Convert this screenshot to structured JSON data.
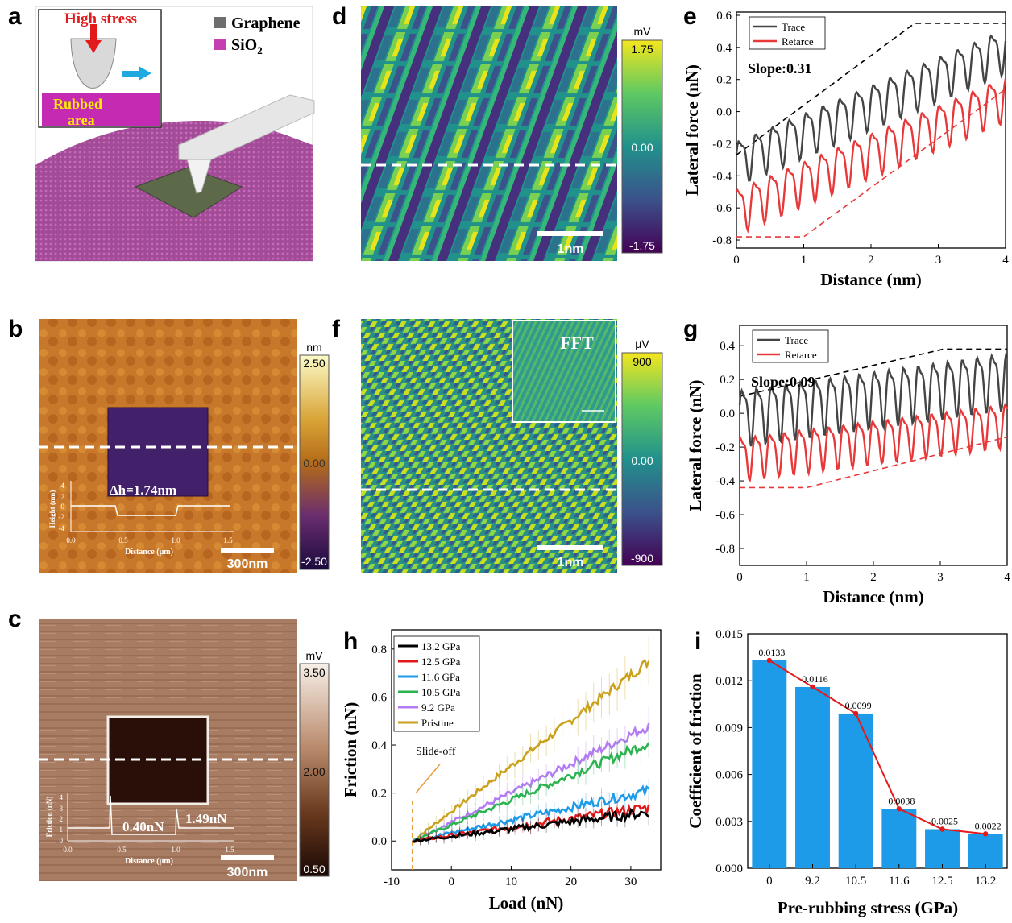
{
  "panel_labels": {
    "a": "a",
    "b": "b",
    "c": "c",
    "d": "d",
    "e": "e",
    "f": "f",
    "g": "g",
    "h": "h",
    "i": "i"
  },
  "panel_a": {
    "inset_title": "High stress",
    "inset_label_line1": "Rubbed",
    "inset_label_line2": "area",
    "legend": [
      {
        "label": "Graphene",
        "color": "#6e6e6e"
      },
      {
        "label": "SiO",
        "sub": "2",
        "color": "#c63fb0"
      }
    ]
  },
  "panel_b": {
    "colorbar_unit": "nm",
    "colorbar_ticks": [
      "2.50",
      "0.00",
      "-2.50"
    ],
    "annotation": "Δh=1.74nm",
    "scale_bar": "300nm",
    "inset": {
      "ylabel": "Height (nm)",
      "xlabel": "Distance (μm)",
      "yticks": [
        "4",
        "2",
        "0",
        "-2",
        "-4"
      ],
      "xticks": [
        "0.0",
        "0.5",
        "1.0",
        "1.5"
      ]
    }
  },
  "panel_c": {
    "colorbar_unit": "mV",
    "colorbar_ticks": [
      "3.50",
      "2.00",
      "0.50"
    ],
    "annotation_left": "0.40nN",
    "annotation_right": "1.49nN",
    "scale_bar": "300nm",
    "inset": {
      "ylabel": "Friction (nN)",
      "xlabel": "Distance (μm)",
      "yticks": [
        "4",
        "3",
        "2",
        "1",
        "0"
      ],
      "xticks": [
        "0.0",
        "0.5",
        "1.0",
        "1.5"
      ]
    }
  },
  "panel_d": {
    "colorbar_unit": "mV",
    "colorbar_ticks": [
      "1.75",
      "0.00",
      "-1.75"
    ],
    "scale_bar": "1nm"
  },
  "panel_f": {
    "colorbar_unit": "μV",
    "colorbar_ticks": [
      "900",
      "0.00",
      "-900"
    ],
    "scale_bar": "1nm",
    "inset_label": "FFT"
  },
  "chart_data": [
    {
      "panel": "e",
      "type": "line",
      "xlabel": "Distance (nm)",
      "ylabel": "Lateral force (nN)",
      "xlim": [
        0,
        4
      ],
      "ylim": [
        -0.85,
        0.62
      ],
      "xticks": [
        "0",
        "1",
        "2",
        "3",
        "4"
      ],
      "yticks": [
        "0.6",
        "0.4",
        "0.2",
        "0.0",
        "-0.2",
        "-0.4",
        "-0.6",
        "-0.8"
      ],
      "annotation": "Slope:0.31",
      "legend": [
        "Trace",
        "Retarce"
      ],
      "series": [
        {
          "name": "Trace",
          "color": "#444444",
          "baseline_start": -0.3,
          "baseline_end": 0.4,
          "amplitude": 0.14,
          "period": 0.25
        },
        {
          "name": "Retarce",
          "color": "#e8393a",
          "baseline_start": -0.6,
          "baseline_end": 0.1,
          "amplitude": 0.14,
          "period": 0.25
        }
      ],
      "envelopes": [
        {
          "color": "#000000",
          "x": [
            0,
            2.65,
            4
          ],
          "y": [
            -0.27,
            0.55,
            0.55
          ]
        },
        {
          "color": "#e8393a",
          "x": [
            0,
            1.0,
            4
          ],
          "y": [
            -0.78,
            -0.78,
            0.14
          ]
        }
      ]
    },
    {
      "panel": "g",
      "type": "line",
      "xlabel": "Distance (nm)",
      "ylabel": "Lateral force (nN)",
      "xlim": [
        0,
        4
      ],
      "ylim": [
        -0.9,
        0.52
      ],
      "xticks": [
        "0",
        "1",
        "2",
        "3",
        "4"
      ],
      "yticks": [
        "0.4",
        "0.2",
        "0.0",
        "-0.2",
        "-0.4",
        "-0.6",
        "-0.8"
      ],
      "annotation": "Slope:0.09",
      "legend": [
        "Trace",
        "Retarce"
      ],
      "series": [
        {
          "name": "Trace",
          "color": "#444444",
          "baseline_start": 0.0,
          "baseline_end": 0.22,
          "amplitude": 0.17,
          "period": 0.22
        },
        {
          "name": "Retarce",
          "color": "#e8393a",
          "baseline_start": -0.25,
          "baseline_end": -0.05,
          "amplitude": 0.13,
          "period": 0.22
        }
      ],
      "envelopes": [
        {
          "color": "#000000",
          "x": [
            0,
            3.05,
            4
          ],
          "y": [
            0.1,
            0.38,
            0.38
          ]
        },
        {
          "color": "#e8393a",
          "x": [
            0,
            1.0,
            4
          ],
          "y": [
            -0.44,
            -0.44,
            -0.14
          ]
        }
      ]
    },
    {
      "panel": "h",
      "type": "line",
      "xlabel": "Load (nN)",
      "ylabel": "Friction (nN)",
      "xlim": [
        -10,
        35
      ],
      "ylim": [
        -0.12,
        0.88
      ],
      "xticks": [
        "-10",
        "0",
        "10",
        "20",
        "30"
      ],
      "yticks": [
        "0.8",
        "0.6",
        "0.4",
        "0.2",
        "0.0"
      ],
      "annotation": "Slide-off",
      "slide_off_x": -6.5,
      "series": [
        {
          "name": "13.2 GPa",
          "color": "#000000",
          "x_start": -6.5,
          "x_end": 33,
          "y_start": 0.0,
          "y_end": 0.12
        },
        {
          "name": "12.5 GPa",
          "color": "#e31a1c",
          "x_start": -6.5,
          "x_end": 33,
          "y_start": 0.0,
          "y_end": 0.14
        },
        {
          "name": "11.6 GPa",
          "color": "#1e9be8",
          "x_start": -6.5,
          "x_end": 33,
          "y_start": 0.0,
          "y_end": 0.21
        },
        {
          "name": "10.5 GPa",
          "color": "#2bb34f",
          "x_start": -6.5,
          "x_end": 33,
          "y_start": 0.0,
          "y_end": 0.41
        },
        {
          "name": "9.2 GPa",
          "color": "#b57bf4",
          "x_start": -6.5,
          "x_end": 33,
          "y_start": 0.0,
          "y_end": 0.48
        },
        {
          "name": "Pristine",
          "color": "#c9a11a",
          "x_start": -6.5,
          "x_end": 33,
          "y_start": 0.0,
          "y_end": 0.75
        }
      ]
    },
    {
      "panel": "i",
      "type": "bar",
      "xlabel": "Pre-rubbing stress (GPa)",
      "ylabel": "Coefficient of friction",
      "categories": [
        "0",
        "9.2",
        "10.5",
        "11.6",
        "12.5",
        "13.2"
      ],
      "values": [
        0.0133,
        0.0116,
        0.0099,
        0.0038,
        0.0025,
        0.0022
      ],
      "value_labels": [
        "0.0133",
        "0.0116",
        "0.0099",
        "0.0038",
        "0.0025",
        "0.0022"
      ],
      "ylim": [
        0,
        0.015
      ],
      "yticks": [
        "0.015",
        "0.012",
        "0.009",
        "0.006",
        "0.003",
        "0.000"
      ],
      "bar_color": "#1e9be8",
      "line_color": "#e31a1c"
    }
  ]
}
